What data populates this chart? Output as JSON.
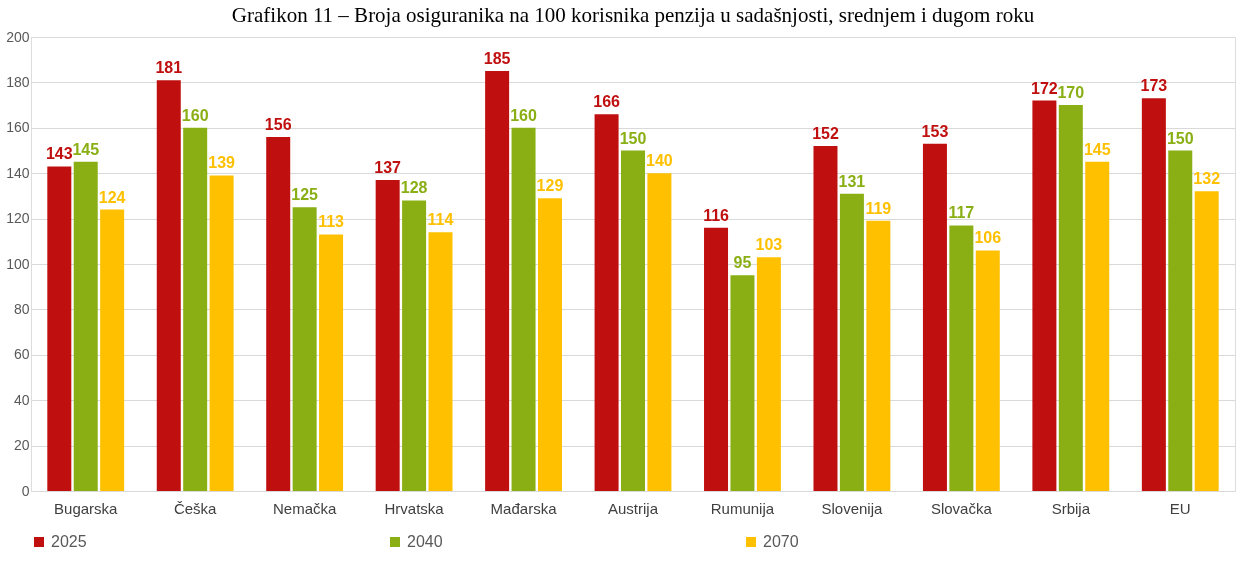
{
  "chart_data": {
    "type": "bar",
    "title": "Grafikon 11 – Broja osiguranika na 100 korisnika penzija u sadašnjosti, srednjem i dugom roku",
    "categories": [
      "Bugarska",
      "Češka",
      "Nemačka",
      "Hrvatska",
      "Mađarska",
      "Austrija",
      "Rumunija",
      "Slovenija",
      "Slovačka",
      "Srbija",
      "EU"
    ],
    "series": [
      {
        "name": "2025",
        "color": "#c00f0f",
        "values": [
          143,
          181,
          156,
          137,
          185,
          166,
          116,
          152,
          153,
          172,
          173
        ]
      },
      {
        "name": "2040",
        "color": "#8aaf14",
        "values": [
          145,
          160,
          125,
          128,
          160,
          150,
          95,
          131,
          117,
          170,
          150
        ]
      },
      {
        "name": "2070",
        "color": "#ffc000",
        "values": [
          124,
          139,
          113,
          114,
          129,
          140,
          103,
          119,
          106,
          145,
          132
        ]
      }
    ],
    "ylim": [
      0,
      200
    ],
    "yticks": [
      0,
      20,
      40,
      60,
      80,
      100,
      120,
      140,
      160,
      180,
      200
    ],
    "grid": "y",
    "legend": "bottom",
    "data_labels": true
  }
}
